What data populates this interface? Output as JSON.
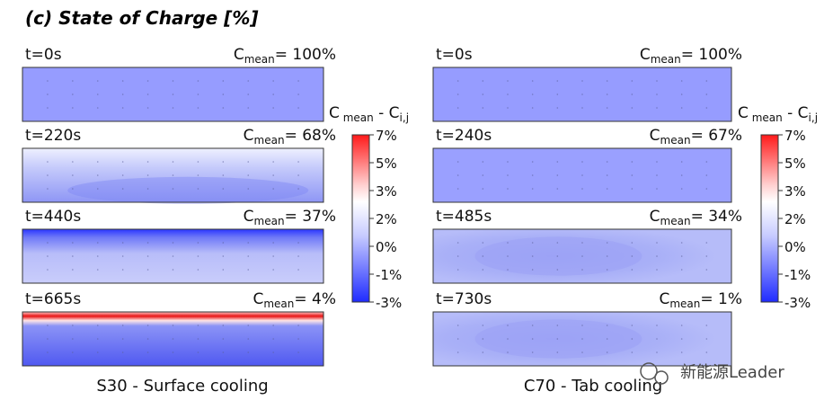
{
  "figure": {
    "title": "(c) State of Charge [%]",
    "watermark": "新能源Leader"
  },
  "chart_data": [
    {
      "type": "heatmap",
      "caption": "S30 -  Surface cooling",
      "colorbar": {
        "label_main": "C",
        "label_sub": "mean",
        "label_rest": " - C",
        "label_sub2": "i,j",
        "ticks": [
          "7%",
          "5%",
          "3%",
          "2%",
          "0%",
          "-1%",
          "-3%"
        ],
        "range": [
          -3,
          7
        ],
        "colors": {
          "low": "#1f2bff",
          "mid": "#ffffff",
          "high": "#ff1a1a"
        }
      },
      "panels": [
        {
          "time": "t=0s",
          "cmean_prefix": "C",
          "cmean_sub": "mean",
          "cmean_value": "= 100%",
          "profile": "uniform",
          "delta": -1.0
        },
        {
          "time": "t=220s",
          "cmean_prefix": "C",
          "cmean_sub": "mean",
          "cmean_value": "= 68%",
          "profile": "gradient_light",
          "delta": -0.6
        },
        {
          "time": "t=440s",
          "cmean_prefix": "C",
          "cmean_sub": "mean",
          "cmean_value": "= 37%",
          "profile": "top_dark",
          "delta": -2.2
        },
        {
          "time": "t=665s",
          "cmean_prefix": "C",
          "cmean_sub": "mean",
          "cmean_value": "= 4%",
          "profile": "top_hot",
          "delta": 7.0
        }
      ]
    },
    {
      "type": "heatmap",
      "caption": "C70 - Tab cooling",
      "colorbar": {
        "label_main": "C",
        "label_sub": "mean",
        "label_rest": " - C",
        "label_sub2": "i,j",
        "ticks": [
          "7%",
          "5%",
          "3%",
          "2%",
          "0%",
          "-1%",
          "-3%"
        ],
        "range": [
          -3,
          7
        ],
        "colors": {
          "low": "#1f2bff",
          "mid": "#ffffff",
          "high": "#ff1a1a"
        }
      },
      "panels": [
        {
          "time": "t=0s",
          "cmean_prefix": "C",
          "cmean_sub": "mean",
          "cmean_value": "= 100%",
          "profile": "uniform",
          "delta": -1.0
        },
        {
          "time": "t=240s",
          "cmean_prefix": "C",
          "cmean_sub": "mean",
          "cmean_value": "= 67%",
          "profile": "uniform",
          "delta": -0.9
        },
        {
          "time": "t=485s",
          "cmean_prefix": "C",
          "cmean_sub": "mean",
          "cmean_value": "= 34%",
          "profile": "center_blob",
          "delta": -1.0
        },
        {
          "time": "t=730s",
          "cmean_prefix": "C",
          "cmean_sub": "mean",
          "cmean_value": "= 1%",
          "profile": "center_blob",
          "delta": -0.9
        }
      ]
    }
  ]
}
